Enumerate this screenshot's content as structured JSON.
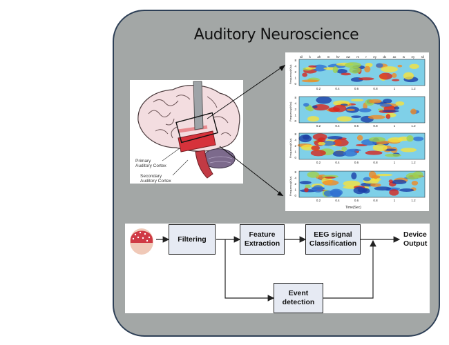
{
  "title": "Auditory Neuroscience",
  "brain": {
    "primary_label": "Primary\nAuditory Cortex",
    "secondary_label": "Secondary\nAuditory Cortex"
  },
  "spectrogram": {
    "phonemes": [
      "sil",
      "k",
      "ah",
      "m",
      "hv",
      "ow",
      "m",
      "r",
      "ey",
      "dx",
      "ax",
      "w",
      "ey",
      "sil"
    ],
    "y_label": "Frequency(Khz)",
    "y_ticks": [
      "8",
      "4",
      "2",
      "1",
      "0"
    ],
    "x_ticks": [
      "0.2",
      "0.4",
      "0.6",
      "0.8",
      "1",
      "1.2"
    ],
    "time_label": "Time(Sec)"
  },
  "flow": {
    "filtering": "Filtering",
    "feature_extraction": "Feature\nExtraction",
    "eeg_classification": "EEG signal\nClassification",
    "event_detection": "Event\ndetection",
    "device_output": "Device\nOutput"
  },
  "colors": {
    "card_bg": "#a3a7a6",
    "card_border": "#2d3f56",
    "box_fill": "#e6eaf3"
  }
}
